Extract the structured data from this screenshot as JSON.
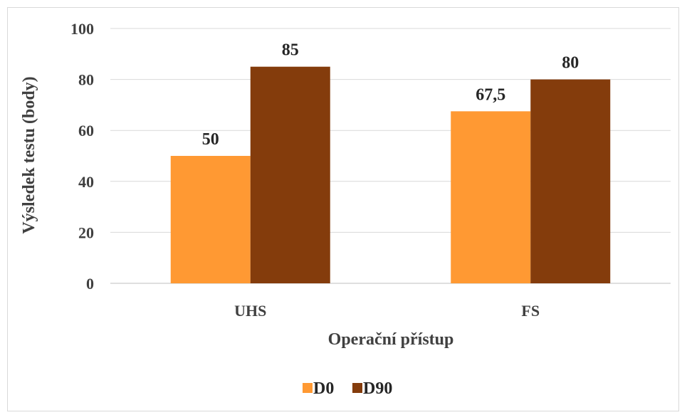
{
  "chart_data": {
    "type": "bar",
    "categories": [
      "UHS",
      "FS"
    ],
    "series": [
      {
        "name": "D0",
        "values": [
          50,
          67.5
        ],
        "labels": [
          "50",
          "67,5"
        ],
        "color": "#ff9933"
      },
      {
        "name": "D90",
        "values": [
          85,
          80
        ],
        "labels": [
          "85",
          "80"
        ],
        "color": "#843c0c"
      }
    ],
    "xlabel": "Operační přístup",
    "ylabel": "Výsledek testu (body)",
    "ylim": [
      0,
      100
    ],
    "yticks": [
      0,
      20,
      40,
      60,
      80,
      100
    ],
    "grid": true,
    "legend": "bottom"
  }
}
